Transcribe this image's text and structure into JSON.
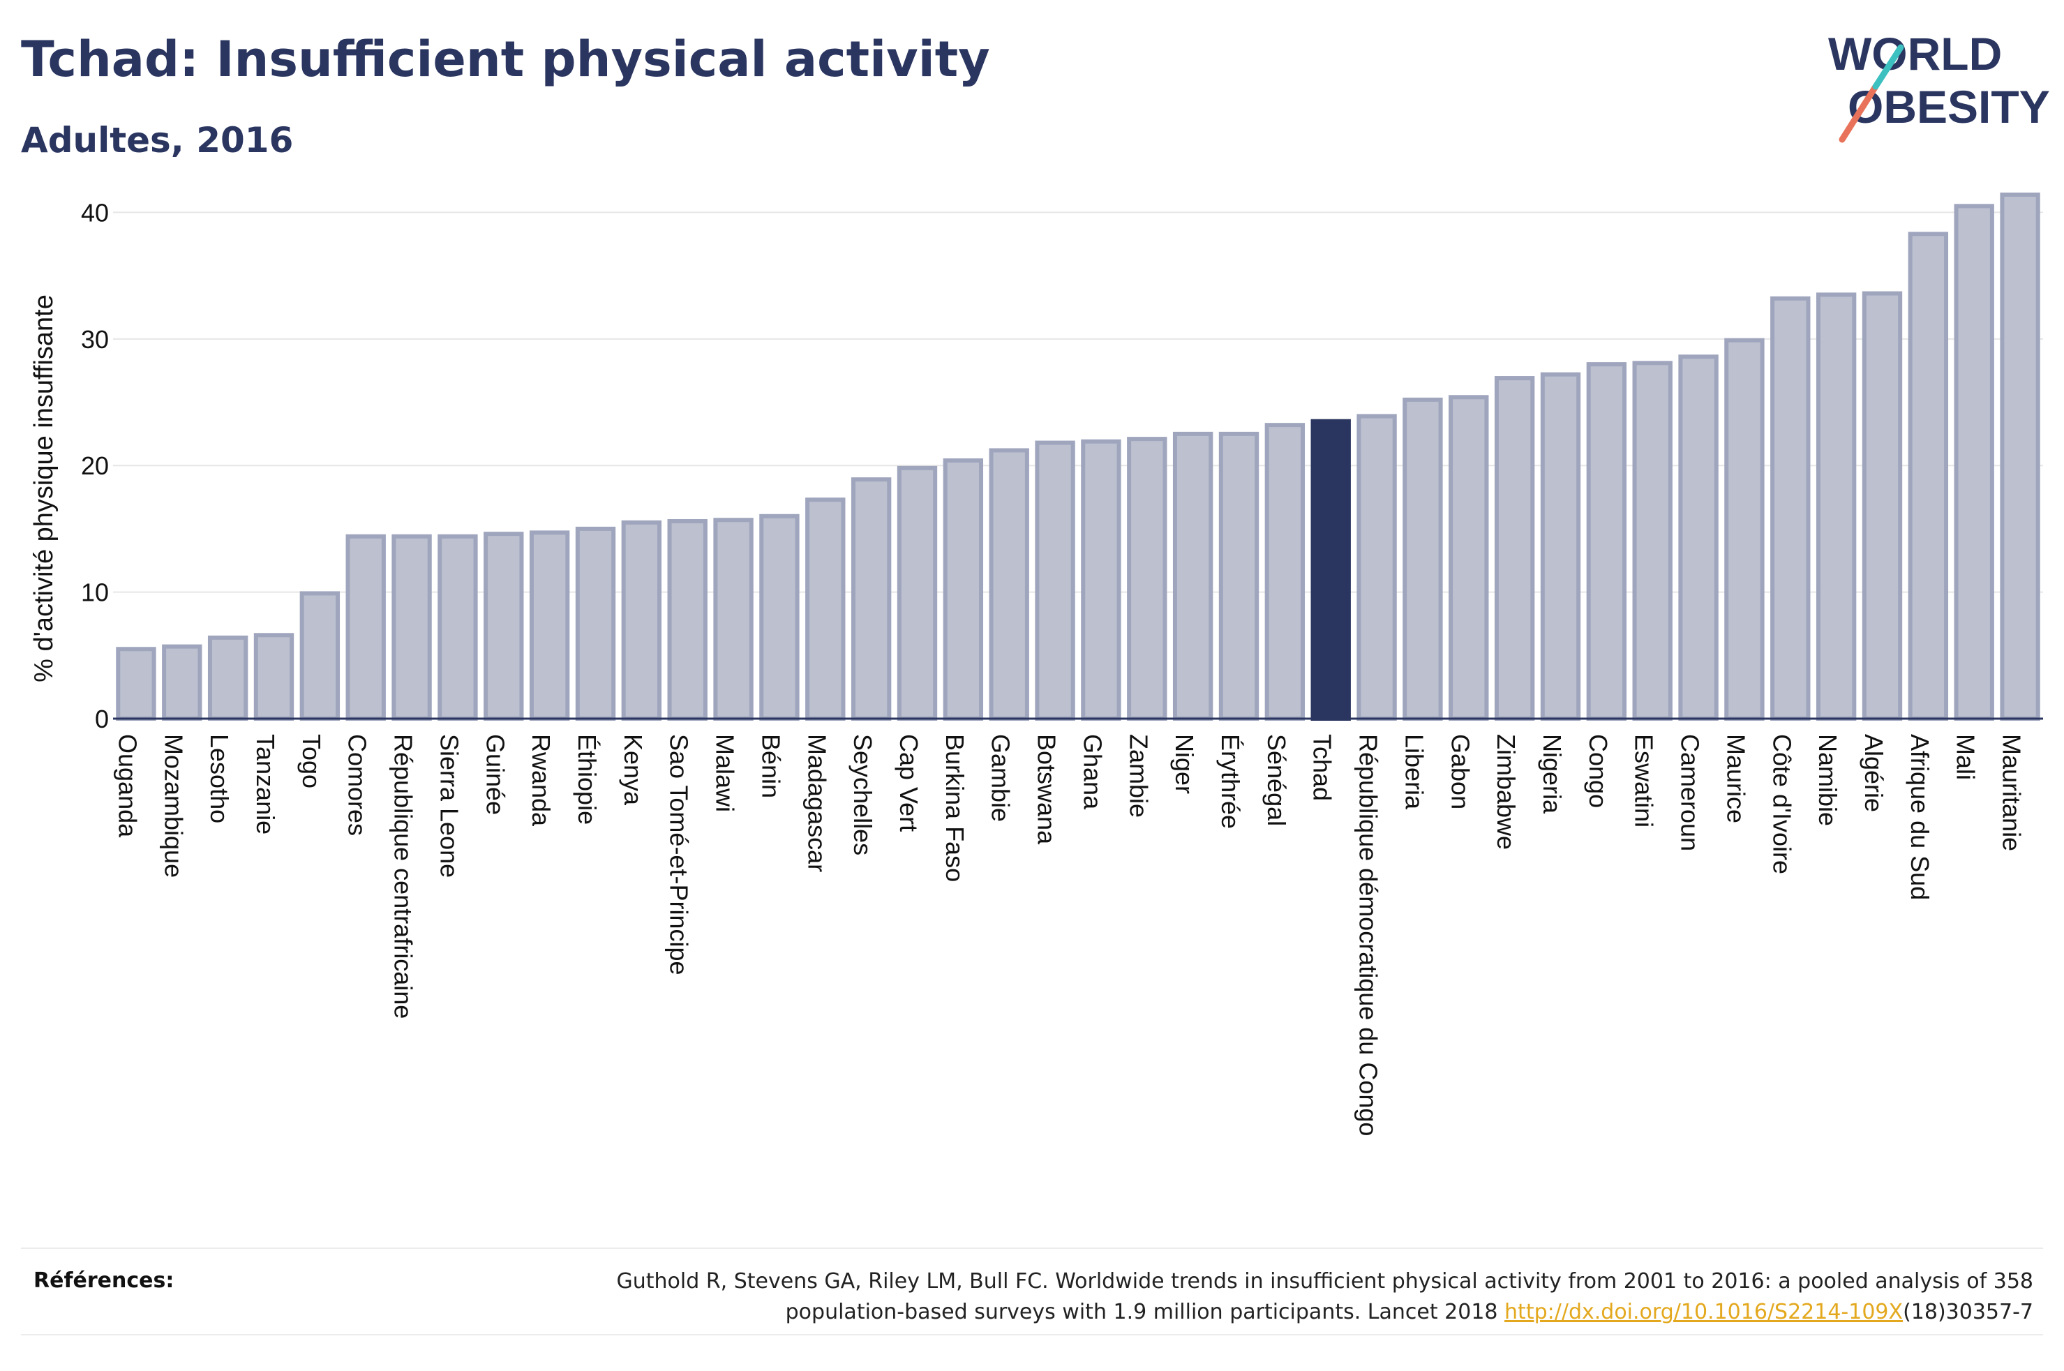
{
  "header": {
    "title": "Tchad: Insufficient physical activity",
    "subtitle": "Adultes, 2016"
  },
  "logo": {
    "line1": "WORLD",
    "line2": "OBESITY",
    "name": "world-obesity-logo"
  },
  "colors": {
    "highlight": "#2a3560",
    "bar_fill": "#bcc0cf",
    "bar_stroke": "#9fa5bd",
    "axis": "#2a3560",
    "grid": "#e6e6e6",
    "link": "#e3a81e",
    "logo_slash_red": "#e8735a",
    "logo_slash_teal": "#3cc0c0"
  },
  "chart_data": {
    "type": "bar",
    "ylabel": "% d'activité physique insuffisante",
    "xlabel": "",
    "ylim": [
      0,
      43
    ],
    "yticks": [
      0,
      10,
      20,
      30,
      40
    ],
    "grid": true,
    "highlight": "Tchad",
    "categories": [
      "Ouganda",
      "Mozambique",
      "Lesotho",
      "Tanzanie",
      "Togo",
      "Comores",
      "République centrafricaine",
      "Sierra Leone",
      "Guinée",
      "Rwanda",
      "Éthiopie",
      "Kenya",
      "Sao Tomé-et-Principe",
      "Malawi",
      "Bénin",
      "Madagascar",
      "Seychelles",
      "Cap Vert",
      "Burkina Faso",
      "Gambie",
      "Botswana",
      "Ghana",
      "Zambie",
      "Niger",
      "Érythrée",
      "Sénégal",
      "Tchad",
      "République démocratique du Congo",
      "Liberia",
      "Gabon",
      "Zimbabwe",
      "Nigeria",
      "Congo",
      "Eswatini",
      "Cameroun",
      "Maurice",
      "Côte d'Ivoire",
      "Namibie",
      "Algérie",
      "Afrique du Sud",
      "Mali",
      "Mauritanie"
    ],
    "values": [
      5.5,
      5.7,
      6.4,
      6.6,
      9.9,
      14.4,
      14.4,
      14.4,
      14.6,
      14.7,
      15.0,
      15.5,
      15.6,
      15.7,
      16.0,
      17.3,
      18.9,
      19.8,
      20.4,
      21.2,
      21.8,
      21.9,
      22.1,
      22.5,
      22.5,
      23.2,
      23.5,
      23.9,
      25.2,
      25.4,
      26.9,
      27.2,
      28.0,
      28.1,
      28.6,
      29.9,
      33.2,
      33.5,
      33.6,
      38.3,
      40.5,
      41.4
    ]
  },
  "references": {
    "label": "Références:",
    "text_line1": "Guthold R, Stevens GA, Riley LM, Bull FC. Worldwide trends in insufficient physical activity from 2001 to 2016: a pooled analysis of 358",
    "text_line2_pre": "population-based surveys with 1.9 million participants. Lancet 2018 ",
    "link": "http://dx.doi.org/10.1016/S2214-109X",
    "text_line2_post": "(18)30357-7"
  }
}
